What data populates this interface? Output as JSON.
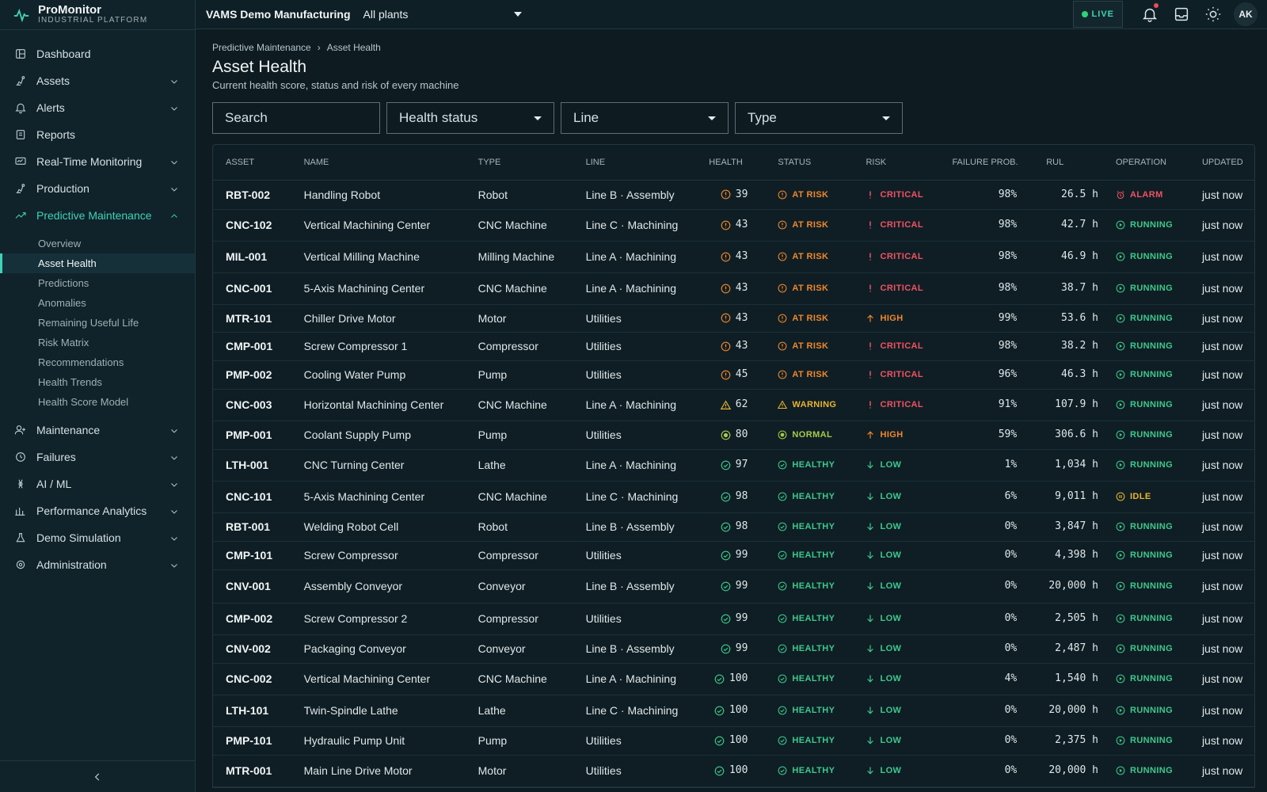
{
  "brand": {
    "name": "ProMonitor",
    "tagline": "INDUSTRIAL PLATFORM"
  },
  "topbar": {
    "company": "VAMS Demo Manufacturing",
    "plant": "All plants",
    "live": "LIVE",
    "avatar": "AK"
  },
  "nav": {
    "items": [
      {
        "label": "Dashboard",
        "icon": "dashboard-icon"
      },
      {
        "label": "Assets",
        "icon": "assets-icon"
      },
      {
        "label": "Alerts",
        "icon": "bell-icon"
      },
      {
        "label": "Reports",
        "icon": "reports-icon"
      },
      {
        "label": "Real-Time Monitoring",
        "icon": "monitor-icon"
      },
      {
        "label": "Production",
        "icon": "production-icon"
      },
      {
        "label": "Predictive Maintenance",
        "icon": "trend-icon"
      },
      {
        "label": "Maintenance",
        "icon": "maintenance-icon"
      },
      {
        "label": "Failures",
        "icon": "failures-icon"
      },
      {
        "label": "AI / ML",
        "icon": "ai-icon"
      },
      {
        "label": "Performance Analytics",
        "icon": "analytics-icon"
      },
      {
        "label": "Demo Simulation",
        "icon": "flask-icon"
      },
      {
        "label": "Administration",
        "icon": "admin-icon"
      }
    ],
    "sub": [
      "Overview",
      "Asset Health",
      "Predictions",
      "Anomalies",
      "Remaining Useful Life",
      "Risk Matrix",
      "Recommendations",
      "Health Trends",
      "Health Score Model"
    ]
  },
  "page": {
    "crumb1": "Predictive Maintenance",
    "crumb2": "Asset Health",
    "title": "Asset Health",
    "subtitle": "Current health score, status and risk of every machine"
  },
  "filters": {
    "search": "Search",
    "status": "Health status",
    "line": "Line",
    "type": "Type"
  },
  "table": {
    "headers": {
      "asset": "ASSET",
      "name": "NAME",
      "type": "TYPE",
      "line": "LINE",
      "health": "HEALTH",
      "status": "STATUS",
      "risk": "RISK",
      "failure": "FAILURE PROB.",
      "rul": "RUL",
      "operation": "OPERATION",
      "updated": "UPDATED"
    },
    "rows": [
      {
        "asset": "RBT-002",
        "name": "Handling Robot",
        "type": "Robot",
        "line": "Line B · Assembly",
        "health": "39",
        "status": "AT RISK",
        "risk": "CRITICAL",
        "fp": "98%",
        "rul": "26.5 h",
        "op": "ALARM",
        "updated": "just now"
      },
      {
        "asset": "CNC-102",
        "name": "Vertical Machining Center",
        "type": "CNC Machine",
        "line": "Line C · Machining",
        "health": "43",
        "status": "AT RISK",
        "risk": "CRITICAL",
        "fp": "98%",
        "rul": "42.7 h",
        "op": "RUNNING",
        "updated": "just now"
      },
      {
        "asset": "MIL-001",
        "name": "Vertical Milling Machine",
        "type": "Milling Machine",
        "line": "Line A · Machining",
        "health": "43",
        "status": "AT RISK",
        "risk": "CRITICAL",
        "fp": "98%",
        "rul": "46.9 h",
        "op": "RUNNING",
        "updated": "just now"
      },
      {
        "asset": "CNC-001",
        "name": "5-Axis Machining Center",
        "type": "CNC Machine",
        "line": "Line A · Machining",
        "health": "43",
        "status": "AT RISK",
        "risk": "CRITICAL",
        "fp": "98%",
        "rul": "38.7 h",
        "op": "RUNNING",
        "updated": "just now"
      },
      {
        "asset": "MTR-101",
        "name": "Chiller Drive Motor",
        "type": "Motor",
        "line": "Utilities",
        "health": "43",
        "status": "AT RISK",
        "risk": "HIGH",
        "fp": "99%",
        "rul": "53.6 h",
        "op": "RUNNING",
        "updated": "just now"
      },
      {
        "asset": "CMP-001",
        "name": "Screw Compressor 1",
        "type": "Compressor",
        "line": "Utilities",
        "health": "43",
        "status": "AT RISK",
        "risk": "CRITICAL",
        "fp": "98%",
        "rul": "38.2 h",
        "op": "RUNNING",
        "updated": "just now"
      },
      {
        "asset": "PMP-002",
        "name": "Cooling Water Pump",
        "type": "Pump",
        "line": "Utilities",
        "health": "45",
        "status": "AT RISK",
        "risk": "CRITICAL",
        "fp": "96%",
        "rul": "46.3 h",
        "op": "RUNNING",
        "updated": "just now"
      },
      {
        "asset": "CNC-003",
        "name": "Horizontal Machining Center",
        "type": "CNC Machine",
        "line": "Line A · Machining",
        "health": "62",
        "status": "WARNING",
        "risk": "CRITICAL",
        "fp": "91%",
        "rul": "107.9 h",
        "op": "RUNNING",
        "updated": "just now"
      },
      {
        "asset": "PMP-001",
        "name": "Coolant Supply Pump",
        "type": "Pump",
        "line": "Utilities",
        "health": "80",
        "status": "NORMAL",
        "risk": "HIGH",
        "fp": "59%",
        "rul": "306.6 h",
        "op": "RUNNING",
        "updated": "just now"
      },
      {
        "asset": "LTH-001",
        "name": "CNC Turning Center",
        "type": "Lathe",
        "line": "Line A · Machining",
        "health": "97",
        "status": "HEALTHY",
        "risk": "LOW",
        "fp": "1%",
        "rul": "1,034 h",
        "op": "RUNNING",
        "updated": "just now"
      },
      {
        "asset": "CNC-101",
        "name": "5-Axis Machining Center",
        "type": "CNC Machine",
        "line": "Line C · Machining",
        "health": "98",
        "status": "HEALTHY",
        "risk": "LOW",
        "fp": "6%",
        "rul": "9,011 h",
        "op": "IDLE",
        "updated": "just now"
      },
      {
        "asset": "RBT-001",
        "name": "Welding Robot Cell",
        "type": "Robot",
        "line": "Line B · Assembly",
        "health": "98",
        "status": "HEALTHY",
        "risk": "LOW",
        "fp": "0%",
        "rul": "3,847 h",
        "op": "RUNNING",
        "updated": "just now"
      },
      {
        "asset": "CMP-101",
        "name": "Screw Compressor",
        "type": "Compressor",
        "line": "Utilities",
        "health": "99",
        "status": "HEALTHY",
        "risk": "LOW",
        "fp": "0%",
        "rul": "4,398 h",
        "op": "RUNNING",
        "updated": "just now"
      },
      {
        "asset": "CNV-001",
        "name": "Assembly Conveyor",
        "type": "Conveyor",
        "line": "Line B · Assembly",
        "health": "99",
        "status": "HEALTHY",
        "risk": "LOW",
        "fp": "0%",
        "rul": "20,000 h",
        "op": "RUNNING",
        "updated": "just now"
      },
      {
        "asset": "CMP-002",
        "name": "Screw Compressor 2",
        "type": "Compressor",
        "line": "Utilities",
        "health": "99",
        "status": "HEALTHY",
        "risk": "LOW",
        "fp": "0%",
        "rul": "2,505 h",
        "op": "RUNNING",
        "updated": "just now"
      },
      {
        "asset": "CNV-002",
        "name": "Packaging Conveyor",
        "type": "Conveyor",
        "line": "Line B · Assembly",
        "health": "99",
        "status": "HEALTHY",
        "risk": "LOW",
        "fp": "0%",
        "rul": "2,487 h",
        "op": "RUNNING",
        "updated": "just now"
      },
      {
        "asset": "CNC-002",
        "name": "Vertical Machining Center",
        "type": "CNC Machine",
        "line": "Line A · Machining",
        "health": "100",
        "status": "HEALTHY",
        "risk": "LOW",
        "fp": "4%",
        "rul": "1,540 h",
        "op": "RUNNING",
        "updated": "just now"
      },
      {
        "asset": "LTH-101",
        "name": "Twin-Spindle Lathe",
        "type": "Lathe",
        "line": "Line C · Machining",
        "health": "100",
        "status": "HEALTHY",
        "risk": "LOW",
        "fp": "0%",
        "rul": "20,000 h",
        "op": "RUNNING",
        "updated": "just now"
      },
      {
        "asset": "PMP-101",
        "name": "Hydraulic Pump Unit",
        "type": "Pump",
        "line": "Utilities",
        "health": "100",
        "status": "HEALTHY",
        "risk": "LOW",
        "fp": "0%",
        "rul": "2,375 h",
        "op": "RUNNING",
        "updated": "just now"
      },
      {
        "asset": "MTR-001",
        "name": "Main Line Drive Motor",
        "type": "Motor",
        "line": "Utilities",
        "health": "100",
        "status": "HEALTHY",
        "risk": "LOW",
        "fp": "0%",
        "rul": "20,000 h",
        "op": "RUNNING",
        "updated": "just now"
      }
    ]
  },
  "colors": {
    "accent": "#3ed3b5",
    "critical": "#f05263",
    "atrisk": "#f0872c",
    "warning": "#e9b52d",
    "healthy": "#3cc98d",
    "normal": "#a8c94a"
  }
}
